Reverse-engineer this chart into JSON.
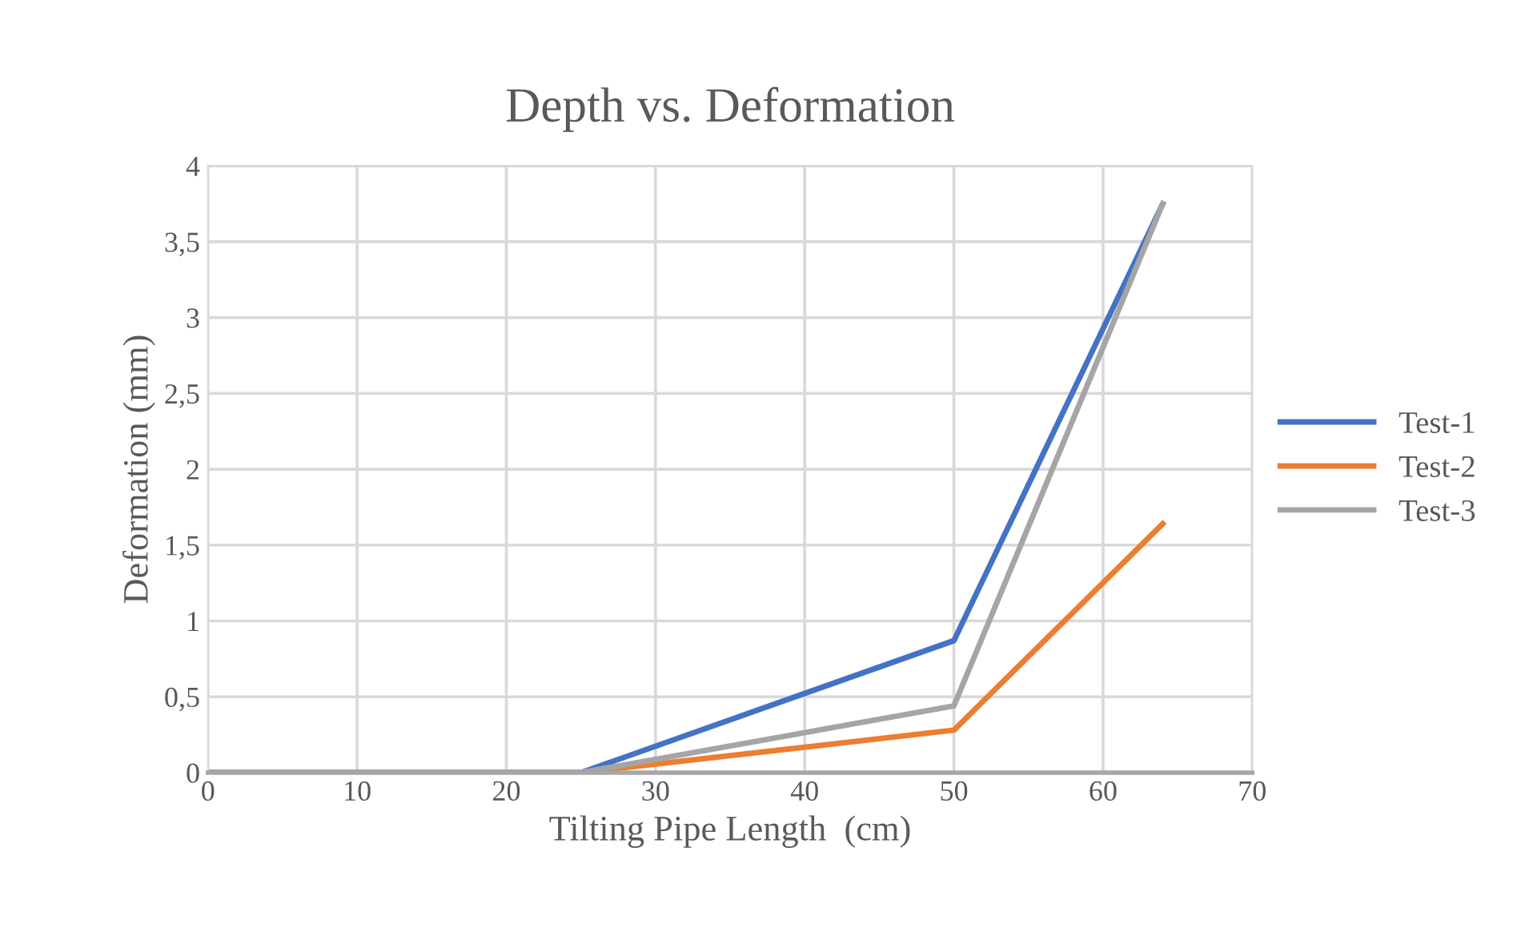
{
  "chart_data": {
    "type": "line",
    "title": "Depth vs. Deformation",
    "xlabel": "Tilting Pipe Length  (cm)",
    "ylabel": "Deformation (mm)",
    "x": [
      0,
      25,
      50,
      64
    ],
    "series": [
      {
        "name": "Test-1",
        "color": "#4472c4",
        "values": [
          0,
          0,
          0.87,
          3.75
        ]
      },
      {
        "name": "Test-2",
        "color": "#ed7d31",
        "values": [
          0,
          0,
          0.28,
          1.64
        ]
      },
      {
        "name": "Test-3",
        "color": "#a5a5a5",
        "values": [
          0,
          0,
          0.44,
          3.75
        ]
      }
    ],
    "xlim": [
      0,
      70
    ],
    "xticks": [
      0,
      10,
      20,
      30,
      40,
      50,
      60,
      70
    ],
    "ylim": [
      0,
      4
    ],
    "yticks": [
      0,
      {
        "value": 0.5,
        "label": "0,5"
      },
      1,
      {
        "value": 1.5,
        "label": "1,5"
      },
      2,
      {
        "value": 2.5,
        "label": "2,5"
      },
      3,
      {
        "value": 3.5,
        "label": "3,5"
      },
      4
    ],
    "grid": true,
    "legend": "right",
    "marker": "none",
    "line_style": "solid"
  }
}
